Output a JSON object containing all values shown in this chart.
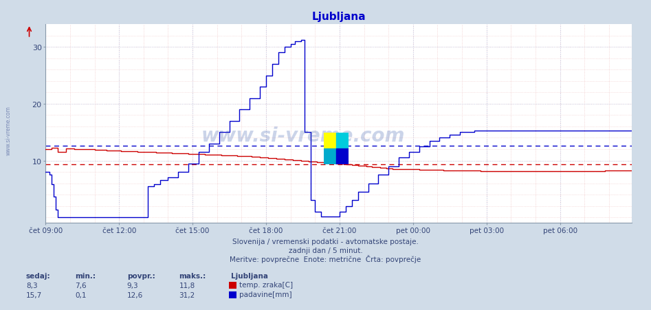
{
  "title": "Ljubljana",
  "title_color": "#0000cc",
  "fig_bg_color": "#d0dce8",
  "plot_bg_color": "#ffffff",
  "avg_red": 9.3,
  "avg_blue": 12.6,
  "subtitle1": "Slovenija / vremenski podatki - avtomatske postaje.",
  "subtitle2": "zadnji dan / 5 minut.",
  "subtitle3": "Meritve: povprečne  Enote: metrične  Črta: povprečje",
  "legend_title": "Ljubljana",
  "legend_items": [
    {
      "label": "temp. zraka[C]",
      "color": "#cc0000"
    },
    {
      "label": "padavine[mm]",
      "color": "#0000cc"
    }
  ],
  "stats_headers": [
    "sedaj:",
    "min.:",
    "povpr.:",
    "maks.:"
  ],
  "stats_red": [
    "8,3",
    "7,6",
    "9,3",
    "11,8"
  ],
  "stats_blue": [
    "15,7",
    "0,1",
    "12,6",
    "31,2"
  ],
  "xtick_labels": [
    "čet 09:00",
    "čet 12:00",
    "čet 15:00",
    "čet 18:00",
    "čet 21:00",
    "pet 00:00",
    "pet 03:00",
    "pet 06:00"
  ],
  "xtick_positions": [
    0,
    36,
    72,
    108,
    144,
    180,
    216,
    252
  ],
  "ytick_labels": [
    "10",
    "20",
    "30"
  ],
  "ytick_positions": [
    10,
    20,
    30
  ],
  "ylim": [
    -1,
    34
  ],
  "xlim": [
    0,
    287
  ],
  "watermark": "www.si-vreme.com",
  "side_label": "www.si-vreme.com",
  "red_color": "#cc0000",
  "blue_color": "#0000cc",
  "grid_minor_color": "#f0c8c8",
  "grid_major_color": "#c8d0e8"
}
